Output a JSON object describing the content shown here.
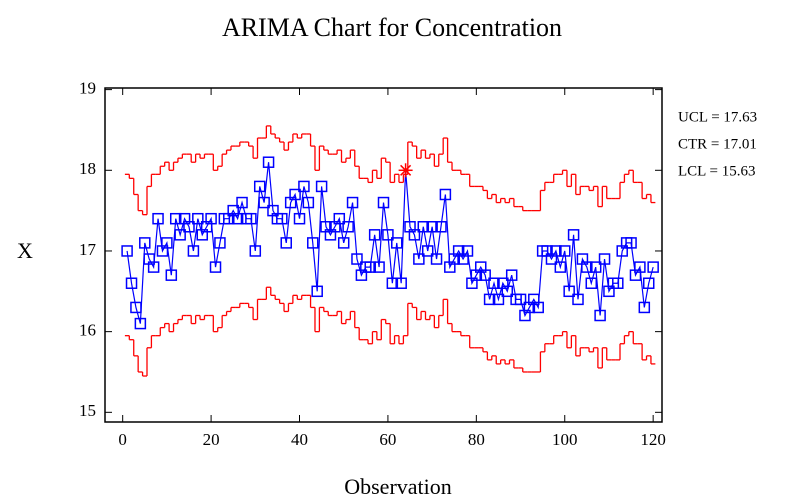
{
  "chart_data": {
    "type": "control",
    "title": "ARIMA Chart for Concentration",
    "x_label": "Observation",
    "y_label": "X",
    "x": [
      1,
      2,
      3,
      4,
      5,
      6,
      7,
      8,
      9,
      10,
      11,
      12,
      13,
      14,
      15,
      16,
      17,
      18,
      19,
      20,
      21,
      22,
      23,
      24,
      25,
      26,
      27,
      28,
      29,
      30,
      31,
      32,
      33,
      34,
      35,
      36,
      37,
      38,
      39,
      40,
      41,
      42,
      43,
      44,
      45,
      46,
      47,
      48,
      49,
      50,
      51,
      52,
      53,
      54,
      55,
      56,
      57,
      58,
      59,
      60,
      61,
      62,
      63,
      64,
      65,
      66,
      67,
      68,
      69,
      70,
      71,
      72,
      73,
      74,
      75,
      76,
      77,
      78,
      79,
      80,
      81,
      82,
      83,
      84,
      85,
      86,
      87,
      88,
      89,
      90,
      91,
      92,
      93,
      94,
      95,
      96,
      97,
      98,
      99,
      100,
      101,
      102,
      103,
      104,
      105,
      106,
      107,
      108,
      109,
      110,
      111,
      112,
      113,
      114,
      115,
      116,
      117,
      118,
      119,
      120
    ],
    "series": [
      {
        "style": "line-markers",
        "color": "#0000ff",
        "values": [
          17.0,
          16.6,
          16.3,
          16.1,
          17.1,
          16.9,
          16.8,
          17.4,
          17.0,
          17.1,
          16.7,
          17.4,
          17.2,
          17.4,
          17.3,
          17.0,
          17.4,
          17.2,
          17.3,
          17.4,
          16.8,
          17.1,
          17.4,
          17.4,
          17.5,
          17.4,
          17.6,
          17.4,
          17.4,
          17.0,
          17.8,
          17.6,
          18.1,
          17.5,
          17.4,
          17.4,
          17.1,
          17.6,
          17.7,
          17.4,
          17.8,
          17.6,
          17.1,
          16.5,
          17.8,
          17.3,
          17.2,
          17.3,
          17.4,
          17.1,
          17.3,
          17.6,
          16.9,
          16.7,
          16.8,
          16.8,
          17.2,
          16.8,
          17.6,
          17.2,
          16.6,
          17.1,
          16.6,
          18.0,
          17.3,
          17.2,
          16.9,
          17.3,
          17.0,
          17.3,
          16.9,
          17.3,
          17.7,
          16.8,
          16.9,
          17.0,
          16.9,
          17.0,
          16.6,
          16.7,
          16.8,
          16.7,
          16.4,
          16.6,
          16.4,
          16.6,
          16.5,
          16.7,
          16.4,
          16.4,
          16.2,
          16.3,
          16.4,
          16.3,
          17.0,
          17.0,
          16.9,
          17.0,
          16.8,
          17.0,
          16.5,
          17.2,
          16.4,
          16.9,
          16.8,
          16.6,
          16.8,
          16.2,
          16.9,
          16.5,
          16.6,
          16.6,
          17.0,
          17.1,
          17.1,
          16.7,
          16.8,
          16.3,
          16.6,
          16.8
        ]
      },
      {
        "style": "step",
        "color": "#ff0000",
        "values": [
          17.95,
          17.9,
          17.7,
          17.5,
          17.45,
          17.8,
          17.95,
          17.95,
          18.05,
          18.1,
          18.0,
          18.1,
          18.15,
          18.2,
          18.2,
          18.1,
          18.2,
          18.15,
          18.2,
          18.2,
          18.0,
          18.05,
          18.2,
          18.25,
          18.3,
          18.3,
          18.35,
          18.35,
          18.3,
          18.15,
          18.4,
          18.4,
          18.55,
          18.45,
          18.4,
          18.35,
          18.25,
          18.35,
          18.45,
          18.4,
          18.45,
          18.45,
          18.3,
          18.0,
          18.3,
          18.25,
          18.2,
          18.2,
          18.25,
          18.1,
          18.15,
          18.25,
          18.05,
          17.9,
          17.9,
          17.85,
          18.0,
          17.9,
          18.15,
          18.1,
          17.85,
          17.95,
          17.85,
          17.95,
          18.35,
          18.3,
          18.15,
          18.25,
          18.15,
          18.2,
          18.05,
          18.2,
          18.4,
          18.1,
          18.0,
          18.0,
          17.95,
          17.95,
          17.8,
          17.8,
          17.8,
          17.75,
          17.65,
          17.7,
          17.6,
          17.65,
          17.6,
          17.65,
          17.55,
          17.55,
          17.5,
          17.5,
          17.5,
          17.5,
          17.75,
          17.85,
          17.85,
          17.95,
          17.95,
          18.0,
          17.8,
          17.95,
          17.7,
          17.8,
          17.8,
          17.75,
          17.8,
          17.55,
          17.8,
          17.65,
          17.65,
          17.65,
          17.85,
          17.95,
          18.0,
          17.85,
          17.85,
          17.65,
          17.7,
          17.6
        ]
      },
      {
        "style": "step",
        "color": "#ff0000",
        "values": [
          15.95,
          15.9,
          15.7,
          15.5,
          15.45,
          15.8,
          15.95,
          15.95,
          16.05,
          16.1,
          16.0,
          16.1,
          16.15,
          16.2,
          16.2,
          16.1,
          16.2,
          16.15,
          16.2,
          16.2,
          16.0,
          16.05,
          16.2,
          16.25,
          16.3,
          16.3,
          16.35,
          16.35,
          16.3,
          16.15,
          16.4,
          16.4,
          16.55,
          16.45,
          16.4,
          16.35,
          16.25,
          16.35,
          16.45,
          16.4,
          16.45,
          16.45,
          16.3,
          16.0,
          16.3,
          16.25,
          16.2,
          16.2,
          16.25,
          16.1,
          16.15,
          16.25,
          16.05,
          15.9,
          15.9,
          15.85,
          16.0,
          15.9,
          16.15,
          16.1,
          15.85,
          15.95,
          15.85,
          15.95,
          16.35,
          16.3,
          16.15,
          16.25,
          16.15,
          16.2,
          16.05,
          16.2,
          16.4,
          16.1,
          16.0,
          16.0,
          15.95,
          15.95,
          15.8,
          15.8,
          15.8,
          15.75,
          15.65,
          15.7,
          15.6,
          15.65,
          15.6,
          15.65,
          15.55,
          15.55,
          15.5,
          15.5,
          15.5,
          15.5,
          15.75,
          15.85,
          15.85,
          15.95,
          15.95,
          16.0,
          15.8,
          15.95,
          15.7,
          15.8,
          15.8,
          15.75,
          15.8,
          15.55,
          15.8,
          15.65,
          15.65,
          15.65,
          15.85,
          15.95,
          16.0,
          15.85,
          15.85,
          15.65,
          15.7,
          15.6
        ]
      }
    ],
    "out_of_control": {
      "x": [
        64
      ],
      "color": "#ff0000"
    },
    "summary": [
      "UCL = 17.63",
      "CTR = 17.01",
      "LCL = 15.63"
    ],
    "xlim": [
      -4,
      122
    ],
    "xticks": [
      0,
      20,
      40,
      60,
      80,
      100,
      120
    ],
    "ylim": [
      14.88,
      19.02
    ],
    "yticks": [
      15,
      16,
      17,
      18,
      19
    ]
  }
}
